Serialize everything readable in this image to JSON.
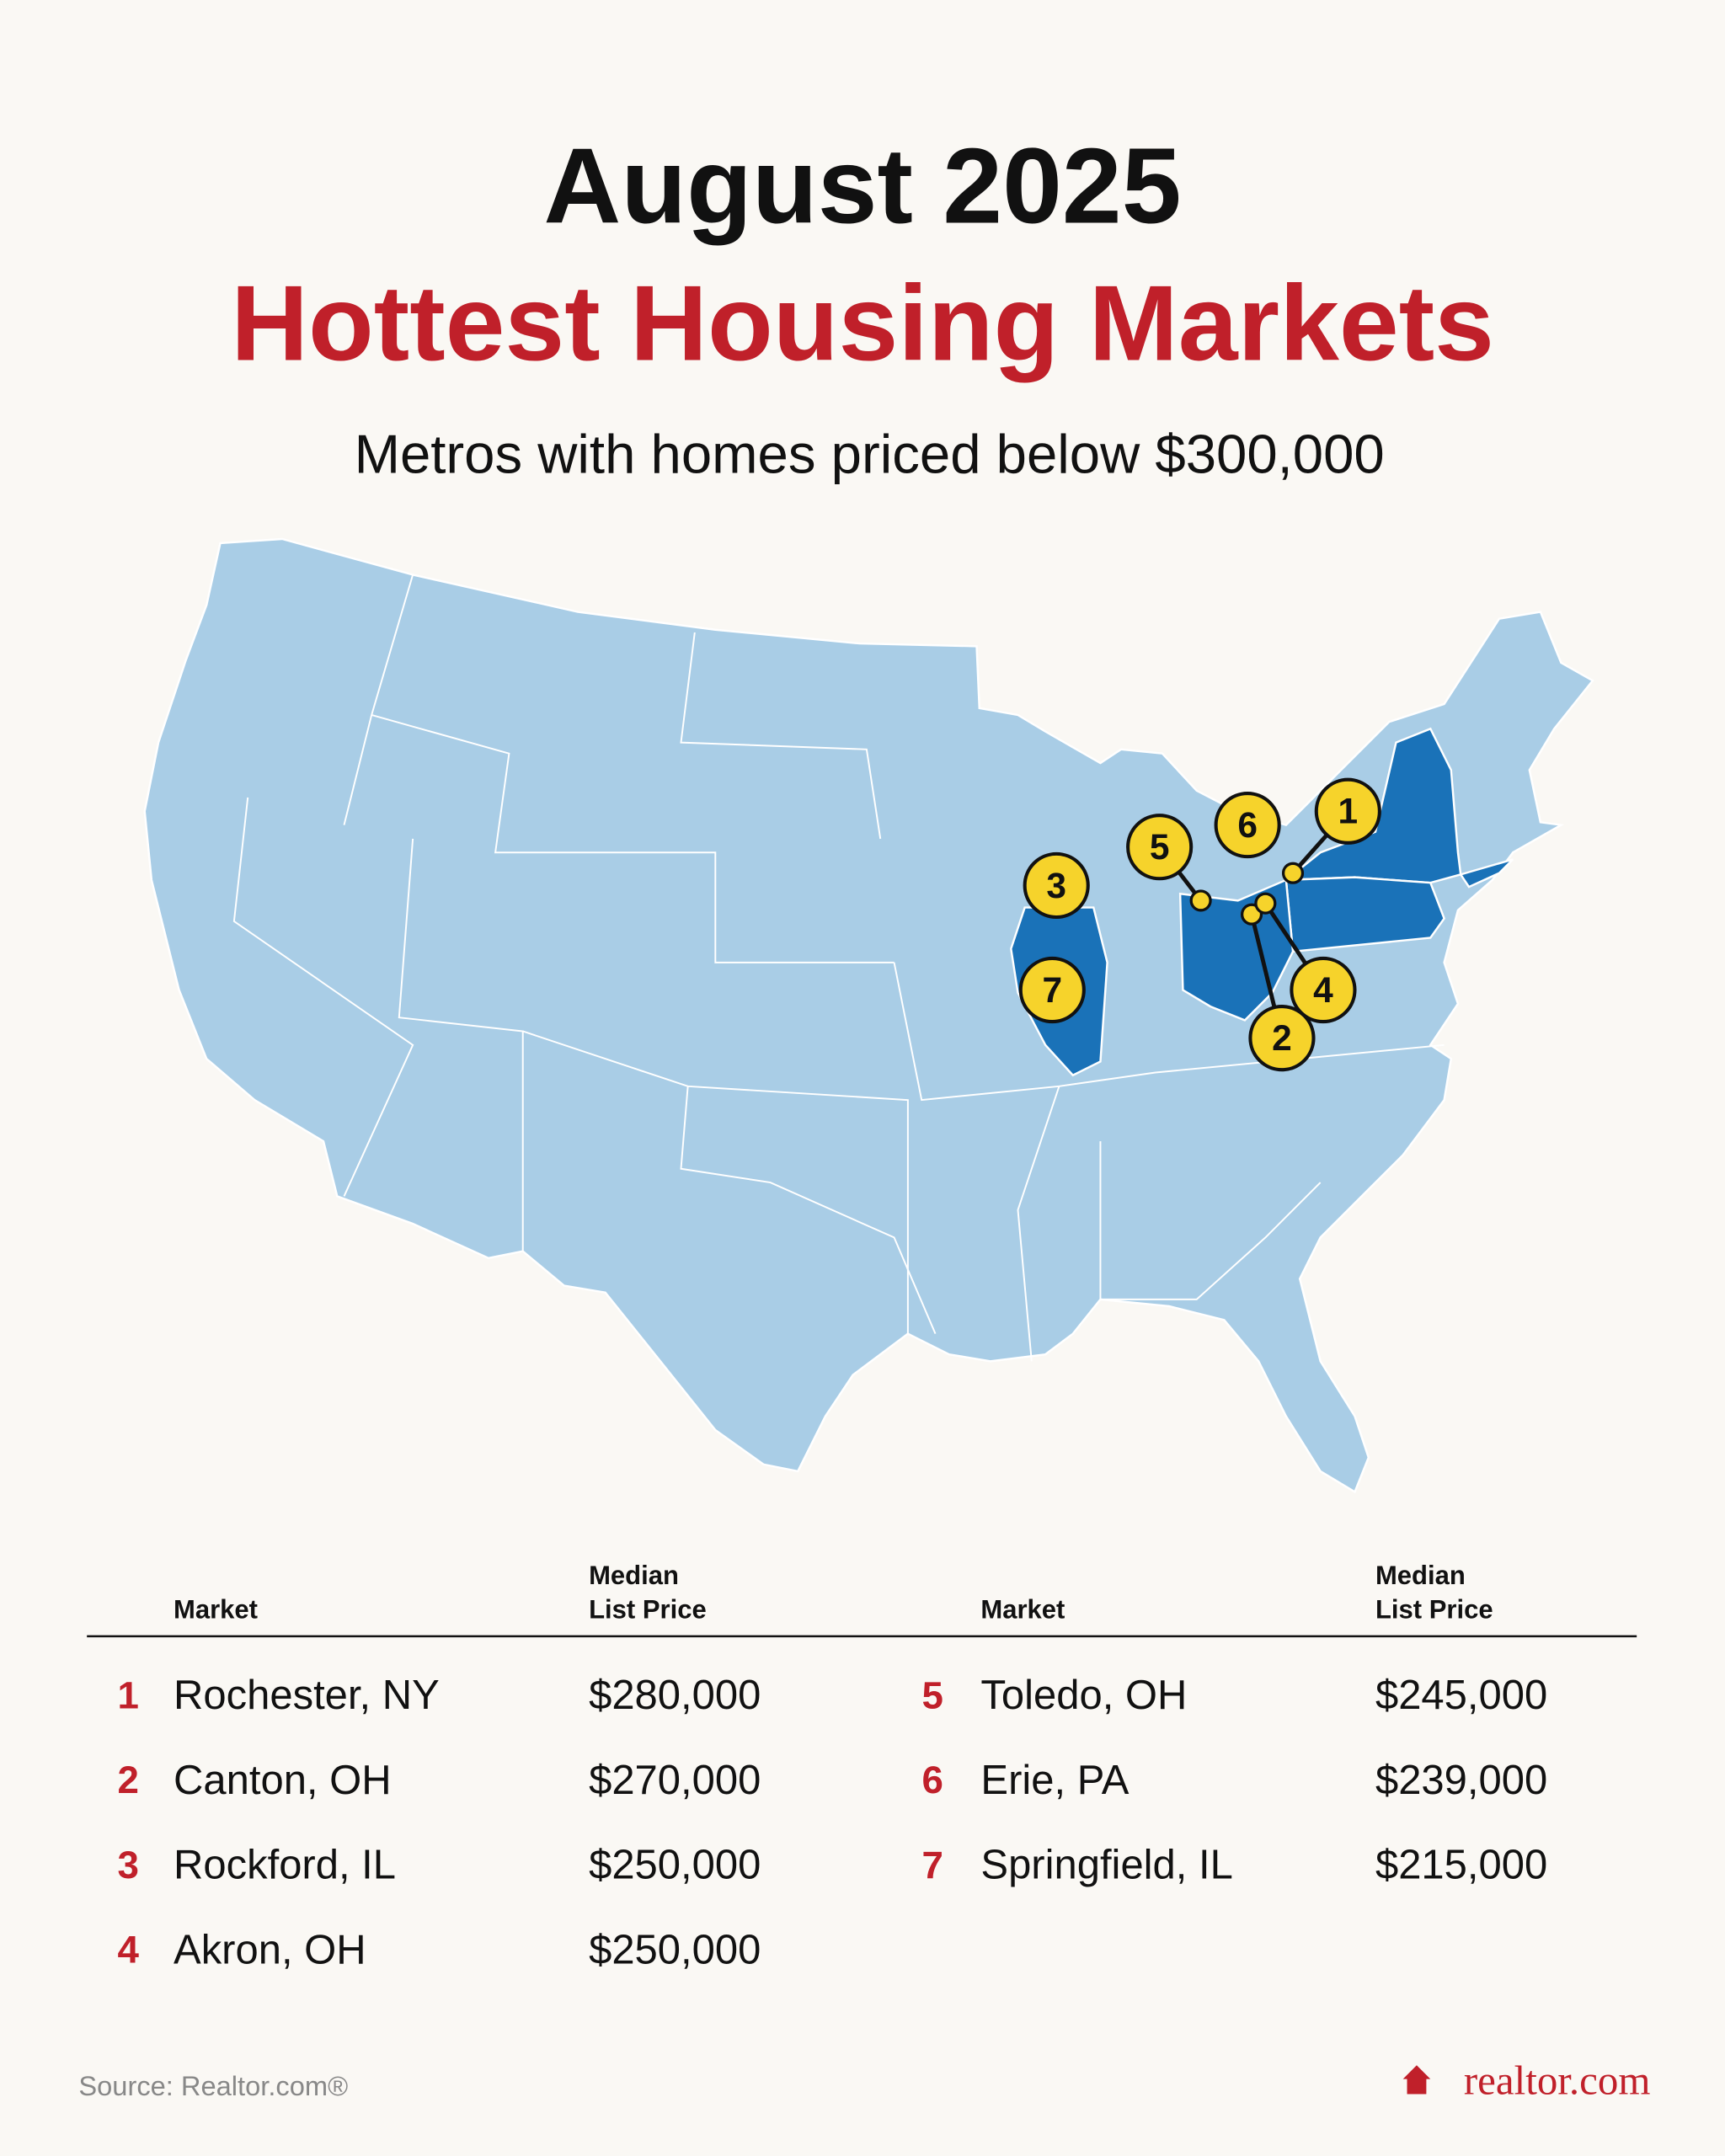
{
  "header": {
    "title_line1": "August 2025",
    "title_line2": "Hottest Housing Markets",
    "subtitle": "Metros with homes priced below $300,000"
  },
  "table": {
    "headers": {
      "market": "Market",
      "price_line1": "Median",
      "price_line2": "List Price"
    },
    "rows": [
      {
        "rank": "1",
        "market": "Rochester, NY",
        "price": "$280,000"
      },
      {
        "rank": "2",
        "market": "Canton, OH",
        "price": "$270,000"
      },
      {
        "rank": "3",
        "market": "Rockford, IL",
        "price": "$250,000"
      },
      {
        "rank": "4",
        "market": "Akron, OH",
        "price": "$250,000"
      },
      {
        "rank": "5",
        "market": "Toledo, OH",
        "price": "$245,000"
      },
      {
        "rank": "6",
        "market": "Erie, PA",
        "price": "$239,000"
      },
      {
        "rank": "7",
        "market": "Springfield, IL",
        "price": "$215,000"
      }
    ]
  },
  "footer": {
    "source": "Source: Realtor.com®",
    "logo": "realtor.com"
  }
}
